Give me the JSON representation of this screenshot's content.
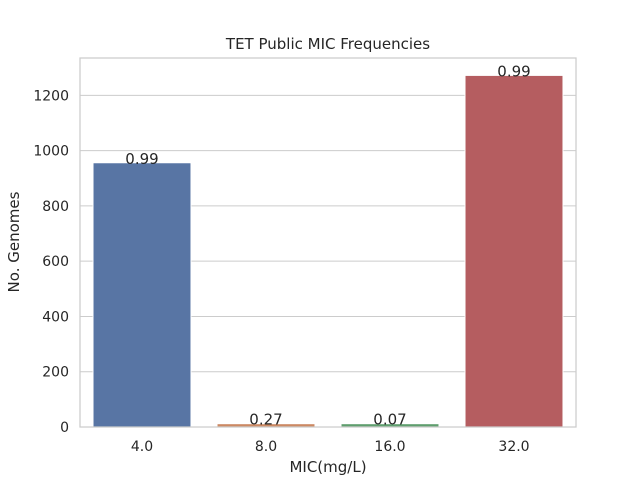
{
  "chart_data": {
    "type": "bar",
    "title": "TET Public MIC Frequencies",
    "xlabel": "MIC(mg/L)",
    "ylabel": "No. Genomes",
    "categories": [
      "4.0",
      "8.0",
      "16.0",
      "32.0"
    ],
    "values": [
      956,
      12,
      12,
      1272
    ],
    "bar_labels": [
      "0.99",
      "0.27",
      "0.07",
      "0.99"
    ],
    "colors": [
      "#5875a4",
      "#cc8963",
      "#5f9e6e",
      "#b55d60"
    ],
    "ylim": [
      0,
      1335
    ],
    "yticks": [
      0,
      200,
      400,
      600,
      800,
      1000,
      1200
    ],
    "grid": true,
    "legend": false
  }
}
